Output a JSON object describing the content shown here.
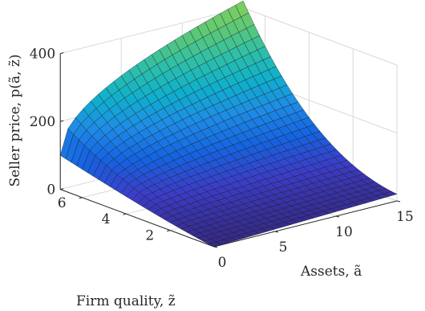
{
  "chart_data": {
    "type": "surface",
    "title": "",
    "xlabel": "Assets, ã",
    "ylabel": "Firm quality, z̃",
    "zlabel": "Seller price, p(ã, z̃)",
    "xlim": [
      0,
      15
    ],
    "ylim": [
      0,
      7
    ],
    "zlim": [
      0,
      400
    ],
    "x_ticks": [
      "0",
      "5",
      "10",
      "15"
    ],
    "y_ticks": [
      "2",
      "4",
      "6"
    ],
    "z_ticks": [
      "0",
      "200",
      "400"
    ],
    "grid": true,
    "colormap": "parula-like (blue → cyan → green)",
    "surface_samples": {
      "note": "price at corners read from the figure",
      "p_at_a0_z0": 0,
      "p_at_a15_z0": 20,
      "p_at_a0_z7": 100,
      "p_at_a15_z7": 400
    }
  }
}
